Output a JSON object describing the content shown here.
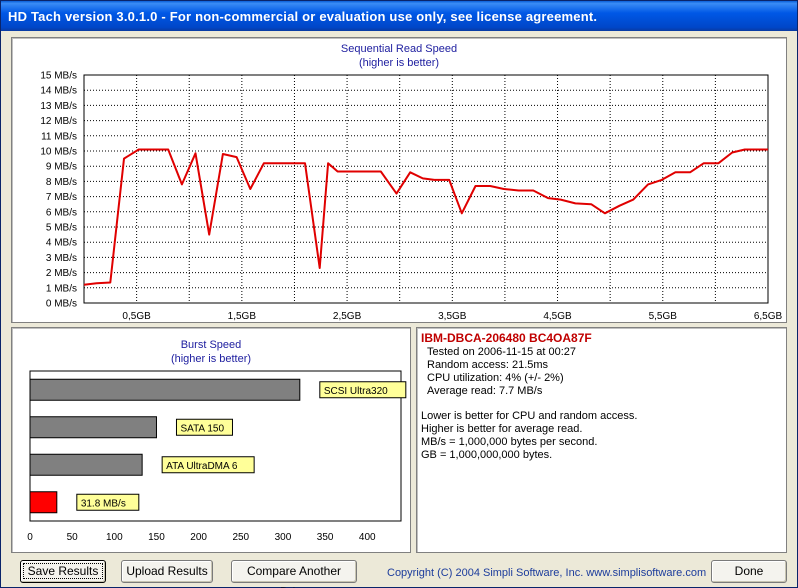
{
  "window": {
    "title": "HD Tach version 3.0.1.0  - For non-commercial or evaluation use only, see license agreement."
  },
  "main_chart": {
    "title": "Sequential Read Speed",
    "subtitle": "(higher is better)"
  },
  "burst_chart": {
    "title": "Burst Speed",
    "subtitle": "(higher is better)"
  },
  "info": {
    "drive": "IBM-DBCA-206480 BC4OA87F",
    "tested_on": "Tested on 2006-11-15 at 00:27",
    "random_access": "Random access: 21.5ms",
    "cpu": "CPU utilization: 4% (+/- 2%)",
    "avg_read": "Average read: 7.7 MB/s",
    "note1": "Lower is better for CPU and random access.",
    "note2": "Higher is better for average read.",
    "note3": "MB/s = 1,000,000 bytes per second.",
    "note4": "GB = 1,000,000,000 bytes."
  },
  "buttons": {
    "save": "Save Results",
    "upload": "Upload Results",
    "compare": "Compare Another Drive",
    "done": "Done"
  },
  "copyright": "Copyright (C) 2004 Simpli Software, Inc. www.simplisoftware.com",
  "colors": {
    "line": "#e00000",
    "bar_gray": "#808080",
    "bar_red": "#ff0000",
    "label_bg": "#ffff99",
    "title_blue": "#2020a0"
  },
  "chart_data": [
    {
      "type": "line",
      "title": "Sequential Read Speed",
      "subtitle": "(higher is better)",
      "ylim": [
        0,
        15
      ],
      "xlim": [
        0,
        6.5
      ],
      "y_ticks": [
        "0 MB/s",
        "1 MB/s",
        "2 MB/s",
        "3 MB/s",
        "4 MB/s",
        "5 MB/s",
        "6 MB/s",
        "7 MB/s",
        "8 MB/s",
        "9 MB/s",
        "10 MB/s",
        "11 MB/s",
        "12 MB/s",
        "13 MB/s",
        "14 MB/s",
        "15 MB/s"
      ],
      "x_ticks": [
        {
          "v": 0.5,
          "label": "0,5GB"
        },
        {
          "v": 1.5,
          "label": "1,5GB"
        },
        {
          "v": 2.5,
          "label": "2,5GB"
        },
        {
          "v": 3.5,
          "label": "3,5GB"
        },
        {
          "v": 4.5,
          "label": "4,5GB"
        },
        {
          "v": 5.5,
          "label": "5,5GB"
        },
        {
          "v": 6.5,
          "label": "6,5GB"
        }
      ],
      "grid": true,
      "x": [
        0,
        0.12,
        0.25,
        0.38,
        0.52,
        0.8,
        0.93,
        1.06,
        1.19,
        1.32,
        1.45,
        1.58,
        1.71,
        1.84,
        2.01,
        2.1,
        2.24,
        2.32,
        2.41,
        2.55,
        2.82,
        2.97,
        3.1,
        3.22,
        3.33,
        3.47,
        3.59,
        3.72,
        3.86,
        3.99,
        4.13,
        4.27,
        4.41,
        4.53,
        4.67,
        4.82,
        4.95,
        5.09,
        5.22,
        5.36,
        5.49,
        5.62,
        5.76,
        5.89,
        6.03,
        6.16,
        6.28,
        6.4,
        6.5
      ],
      "y": [
        1.2,
        1.3,
        1.35,
        9.5,
        10.1,
        10.1,
        7.8,
        9.85,
        4.5,
        9.8,
        9.6,
        7.5,
        9.2,
        9.2,
        9.2,
        9.2,
        2.3,
        9.2,
        8.65,
        8.65,
        8.65,
        7.2,
        8.6,
        8.2,
        8.1,
        8.1,
        5.9,
        7.7,
        7.7,
        7.5,
        7.4,
        7.4,
        6.9,
        6.8,
        6.55,
        6.5,
        5.9,
        6.4,
        6.8,
        7.8,
        8.1,
        8.6,
        8.6,
        9.2,
        9.2,
        9.9,
        10.1,
        10.1,
        10.1
      ]
    },
    {
      "type": "bar",
      "orientation": "horizontal",
      "title": "Burst Speed",
      "subtitle": "(higher is better)",
      "xlim": [
        0,
        440
      ],
      "x_ticks": [
        0,
        50,
        100,
        150,
        200,
        250,
        300,
        350,
        400
      ],
      "categories": [
        "SCSI Ultra320",
        "SATA 150",
        "ATA UltraDMA 6",
        "31.8 MB/s"
      ],
      "values": [
        320,
        150,
        133,
        31.8
      ],
      "bar_colors": [
        "#808080",
        "#808080",
        "#808080",
        "#ff0000"
      ]
    }
  ]
}
